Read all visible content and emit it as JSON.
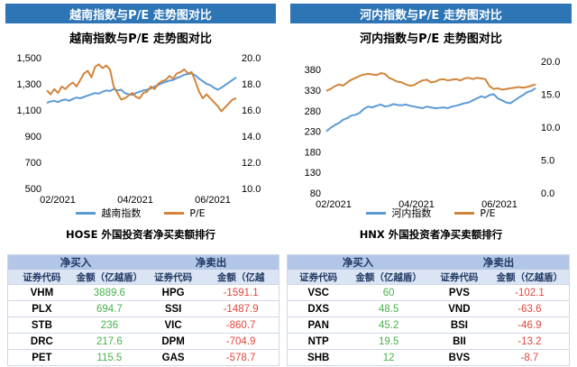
{
  "colors": {
    "banner": "#2e75b6",
    "index_line": "#5b9bd5",
    "pe_line": "#d2853a",
    "buy_text": "#4caf50",
    "sell_text": "#e2453c"
  },
  "left": {
    "banner": "越南指数与P/E 走势图对比",
    "title": "越南指数与P/E 走势图对比",
    "legend": [
      "越南指数",
      "P/E"
    ]
  },
  "right": {
    "banner": "河内指数与P/E 走势图对比",
    "title": "河内指数与P/E 走势图对比",
    "legend": [
      "河内指数",
      "P/E"
    ]
  },
  "chart_data": [
    {
      "type": "line",
      "title": "越南指数与P/E 走势图对比",
      "x_ticks": [
        "02/2021",
        "04/2021",
        "06/2021"
      ],
      "left_axis": {
        "ticks": [
          "500",
          "700",
          "900",
          "1,100",
          "1,300",
          "1,500"
        ],
        "range": [
          500,
          1500
        ]
      },
      "right_axis": {
        "ticks": [
          "10.0",
          "12.0",
          "14.0",
          "16.0",
          "18.0",
          "20.0"
        ],
        "range": [
          10,
          20
        ]
      },
      "grid": false,
      "legend_position": "bottom",
      "series": [
        {
          "name": "越南指数",
          "axis": "left",
          "values": [
            1155,
            1165,
            1170,
            1160,
            1175,
            1180,
            1170,
            1185,
            1195,
            1190,
            1200,
            1210,
            1220,
            1230,
            1225,
            1240,
            1250,
            1245,
            1260,
            1250,
            1255,
            1230,
            1220,
            1215,
            1230,
            1240,
            1250,
            1255,
            1265,
            1280,
            1290,
            1305,
            1315,
            1325,
            1330,
            1345,
            1355,
            1370,
            1375,
            1380,
            1365,
            1340,
            1320,
            1300,
            1290,
            1270,
            1255,
            1270,
            1290,
            1310,
            1330,
            1350
          ]
        },
        {
          "name": "P/E",
          "axis": "right",
          "values": [
            17.5,
            17.2,
            17.6,
            17.3,
            17.8,
            17.6,
            17.9,
            18.1,
            17.8,
            18.3,
            18.8,
            19.0,
            18.5,
            19.3,
            19.5,
            19.2,
            19.4,
            19.1,
            17.8,
            17.3,
            16.8,
            16.9,
            17.1,
            17.3,
            17.0,
            16.9,
            17.3,
            17.4,
            17.8,
            17.6,
            18.0,
            18.2,
            18.3,
            18.6,
            18.4,
            18.8,
            18.9,
            19.1,
            18.8,
            18.9,
            18.2,
            17.4,
            16.9,
            17.2,
            16.9,
            16.6,
            16.3,
            15.9,
            16.2,
            16.5,
            16.8,
            16.9
          ]
        }
      ]
    },
    {
      "type": "line",
      "title": "河内指数与P/E 走势图对比",
      "x_ticks": [
        "02/2021",
        "04/2021",
        "06/2021"
      ],
      "left_axis": {
        "ticks": [
          "80",
          "130",
          "180",
          "230",
          "280",
          "330",
          "380"
        ],
        "range": [
          80,
          400
        ]
      },
      "right_axis": {
        "ticks": [
          "0.0",
          "5.0",
          "10.0",
          "15.0",
          "20.0"
        ],
        "range": [
          0,
          20
        ]
      },
      "grid": false,
      "legend_position": "bottom",
      "series": [
        {
          "name": "河内指数",
          "axis": "left",
          "values": [
            230,
            238,
            245,
            250,
            258,
            262,
            268,
            270,
            275,
            285,
            290,
            288,
            292,
            295,
            290,
            292,
            296,
            294,
            293,
            295,
            292,
            290,
            288,
            286,
            290,
            288,
            286,
            287,
            288,
            286,
            290,
            292,
            295,
            298,
            300,
            305,
            310,
            315,
            312,
            318,
            320,
            310,
            305,
            300,
            298,
            305,
            312,
            318,
            325,
            328,
            335
          ]
        },
        {
          "name": "P/E",
          "axis": "right",
          "values": [
            15.5,
            15.8,
            16.2,
            16.5,
            16.3,
            16.8,
            17.2,
            17.5,
            17.8,
            18.0,
            18.1,
            18.0,
            17.9,
            18.2,
            18.1,
            17.5,
            17.2,
            16.9,
            16.8,
            16.5,
            16.3,
            16.4,
            16.8,
            17.1,
            17.2,
            16.8,
            16.9,
            17.2,
            17.3,
            17.1,
            17.2,
            17.3,
            17.1,
            17.4,
            17.5,
            17.3,
            17.5,
            17.4,
            17.3,
            16.2,
            15.8,
            15.9,
            15.7,
            15.8,
            15.9,
            16.0,
            16.1,
            16.0,
            16.1,
            16.3,
            16.5
          ]
        }
      ]
    }
  ],
  "tables": [
    {
      "title": "HOSE 外国投资者净买卖额排行",
      "group_headers": [
        "净买入",
        "净卖出"
      ],
      "sub_headers": [
        "证券代码",
        "金额（亿越盾）",
        "证券代码",
        "金额（亿越"
      ],
      "rows": [
        [
          "VHM",
          "3889.6",
          "HPG",
          "-1591.1"
        ],
        [
          "PLX",
          "694.7",
          "SSI",
          "-1487.9"
        ],
        [
          "STB",
          "236",
          "VIC",
          "-860.7"
        ],
        [
          "DRC",
          "217.6",
          "DPM",
          "-704.9"
        ],
        [
          "PET",
          "115.5",
          "GAS",
          "-578.7"
        ]
      ]
    },
    {
      "title": "HNX 外国投资者净买卖额排行",
      "group_headers": [
        "净买入",
        "净卖出"
      ],
      "sub_headers": [
        "证券代码",
        "金额（亿越盾）",
        "证券代码",
        "金额（亿越盾）"
      ],
      "rows": [
        [
          "VSC",
          "60",
          "PVS",
          "-102.1"
        ],
        [
          "DXS",
          "48.5",
          "VND",
          "-63.6"
        ],
        [
          "PAN",
          "45.2",
          "BSI",
          "-46.9"
        ],
        [
          "NTP",
          "19.5",
          "BII",
          "-13.2"
        ],
        [
          "SHB",
          "12",
          "BVS",
          "-8.7"
        ]
      ]
    }
  ]
}
